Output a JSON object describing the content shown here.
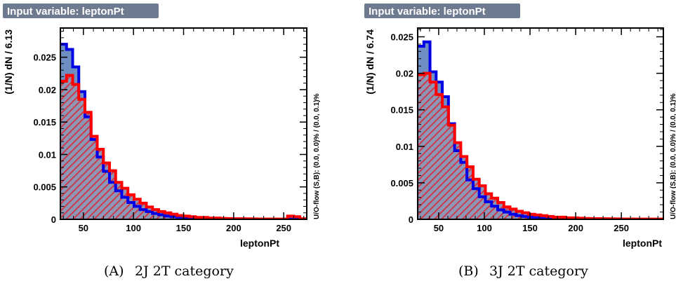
{
  "chart_data": [
    {
      "type": "bar",
      "tag": "Input variable: leptonPt",
      "xlabel": "leptonPt",
      "ylabel": "(1/N) dN / 6.13",
      "side_note": "U/O-flow (S,B): (0.0, 0.0)% / (0.0, 0.1)%",
      "caption_letter": "(A)",
      "caption_text": "2J 2T category",
      "xlim": [
        27,
        273
      ],
      "ylim": [
        0,
        0.0295
      ],
      "bin_width": 6.13,
      "x_start": 27,
      "x_ticks": [
        50,
        100,
        150,
        200,
        250
      ],
      "y_ticks": [
        0,
        0.005,
        0.01,
        0.015,
        0.02,
        0.025
      ],
      "y_tick_labels": [
        "0",
        "0.005",
        "0.01",
        "0.015",
        "0.02",
        "0.025"
      ],
      "series": [
        {
          "values": [
            0.027,
            0.0262,
            0.0235,
            0.0197,
            0.0158,
            0.0123,
            0.0096,
            0.0074,
            0.0057,
            0.0044,
            0.0034,
            0.0026,
            0.002,
            0.0015,
            0.0012,
            0.0009,
            0.0007,
            0.0005,
            0.0004,
            0.0003,
            0.0002,
            0.00015,
            0.0001,
            0.0001,
            8e-05,
            6e-05,
            5e-05,
            4e-05,
            3e-05,
            3e-05,
            2e-05,
            2e-05,
            2e-05,
            2e-05,
            1e-05,
            1e-05,
            1e-05,
            1e-05,
            1e-05,
            1e-05
          ]
        },
        {
          "values": [
            0.0213,
            0.0222,
            0.0208,
            0.0185,
            0.0165,
            0.0128,
            0.0108,
            0.0087,
            0.0075,
            0.0057,
            0.0048,
            0.0038,
            0.0031,
            0.0025,
            0.0019,
            0.0015,
            0.0012,
            0.001,
            0.0008,
            0.0006,
            0.0005,
            0.0004,
            0.0003,
            0.0003,
            0.0002,
            0.0002,
            0.00015,
            0.00012,
            0.0001,
            0.0001,
            8e-05,
            7e-05,
            6e-05,
            5e-05,
            5e-05,
            4e-05,
            4e-05,
            0.0005,
            0.0004,
            0.0001
          ]
        }
      ]
    },
    {
      "type": "bar",
      "tag": "Input variable: leptonPt",
      "xlabel": "leptonPt",
      "ylabel": "(1/N) dN / 6.74",
      "side_note": "U/O-flow (S,B): (0.0, 0.0)% / (0.0, 0.1)%",
      "caption_letter": "(B)",
      "caption_text": "3J 2T category",
      "xlim": [
        27,
        296
      ],
      "ylim": [
        0,
        0.0262
      ],
      "bin_width": 6.74,
      "x_start": 27,
      "x_ticks": [
        50,
        100,
        150,
        200,
        250
      ],
      "y_ticks": [
        0,
        0.005,
        0.01,
        0.015,
        0.02,
        0.025
      ],
      "y_tick_labels": [
        "0",
        "0.005",
        "0.01",
        "0.015",
        "0.02",
        "0.025"
      ],
      "series": [
        {
          "values": [
            0.0237,
            0.0243,
            0.0202,
            0.0188,
            0.0168,
            0.0131,
            0.0094,
            0.0078,
            0.0054,
            0.0042,
            0.0031,
            0.0024,
            0.0018,
            0.0013,
            0.001,
            0.0007,
            0.0005,
            0.0004,
            0.0003,
            0.0002,
            0.00015,
            0.0001,
            8e-05,
            6e-05,
            5e-05,
            4e-05,
            3e-05,
            3e-05,
            2e-05,
            2e-05,
            2e-05,
            1e-05,
            1e-05,
            1e-05,
            1e-05,
            1e-05,
            1e-05,
            1e-05,
            1e-05,
            1e-05
          ]
        },
        {
          "values": [
            0.0198,
            0.02,
            0.0188,
            0.0171,
            0.0154,
            0.0129,
            0.0105,
            0.0086,
            0.0072,
            0.0055,
            0.0046,
            0.0035,
            0.0029,
            0.0023,
            0.0017,
            0.0014,
            0.0011,
            0.0009,
            0.0007,
            0.0006,
            0.0005,
            0.0004,
            0.0003,
            0.0003,
            0.0002,
            0.0002,
            0.00015,
            0.00012,
            0.0001,
            0.0001,
            8e-05,
            7e-05,
            6e-05,
            5e-05,
            5e-05,
            4e-05,
            4e-05,
            4e-05,
            3e-05,
            3e-05
          ]
        }
      ]
    }
  ],
  "colors": {
    "signal_fill": "#6f8fc4",
    "signal_line": "#0000e6",
    "background_line": "#ff0000",
    "background_hatch": "#d2303c",
    "tag_bg": "#6d7a8f"
  }
}
